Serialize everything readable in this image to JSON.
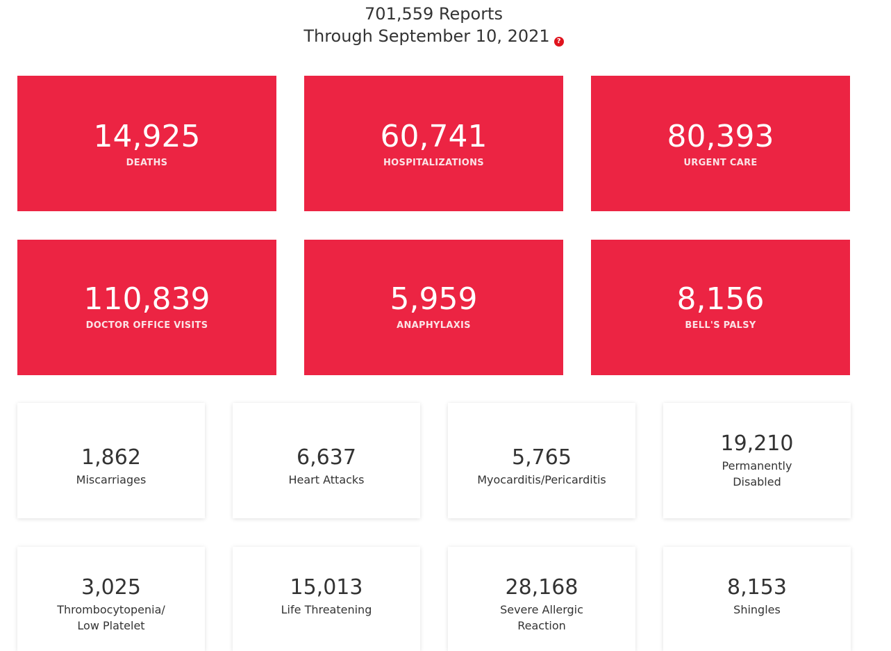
{
  "header": {
    "reports_line": "701,559 Reports",
    "through_line": "Through September 10, 2021",
    "help_glyph": "?"
  },
  "colors": {
    "accent_red": "#ec2443",
    "help_icon_red": "#e0141e"
  },
  "red_stats": [
    {
      "value": "14,925",
      "label": "DEATHS"
    },
    {
      "value": "60,741",
      "label": "HOSPITALIZATIONS"
    },
    {
      "value": "80,393",
      "label": "URGENT CARE"
    },
    {
      "value": "110,839",
      "label": "DOCTOR OFFICE VISITS"
    },
    {
      "value": "5,959",
      "label": "ANAPHYLAXIS"
    },
    {
      "value": "8,156",
      "label": "BELL'S PALSY"
    }
  ],
  "white_stats": [
    {
      "value": "1,862",
      "label": "Miscarriages"
    },
    {
      "value": "6,637",
      "label": "Heart Attacks"
    },
    {
      "value": "5,765",
      "label": "Myocarditis/Pericarditis"
    },
    {
      "value": "19,210",
      "label_line1": "Permanently",
      "label_line2": "Disabled"
    },
    {
      "value": "3,025",
      "label_line1": "Thrombocytopenia/",
      "label_line2": "Low Platelet"
    },
    {
      "value": "15,013",
      "label": "Life Threatening"
    },
    {
      "value": "28,168",
      "label_line1": "Severe Allergic",
      "label_line2": "Reaction"
    },
    {
      "value": "8,153",
      "label": "Shingles"
    }
  ]
}
